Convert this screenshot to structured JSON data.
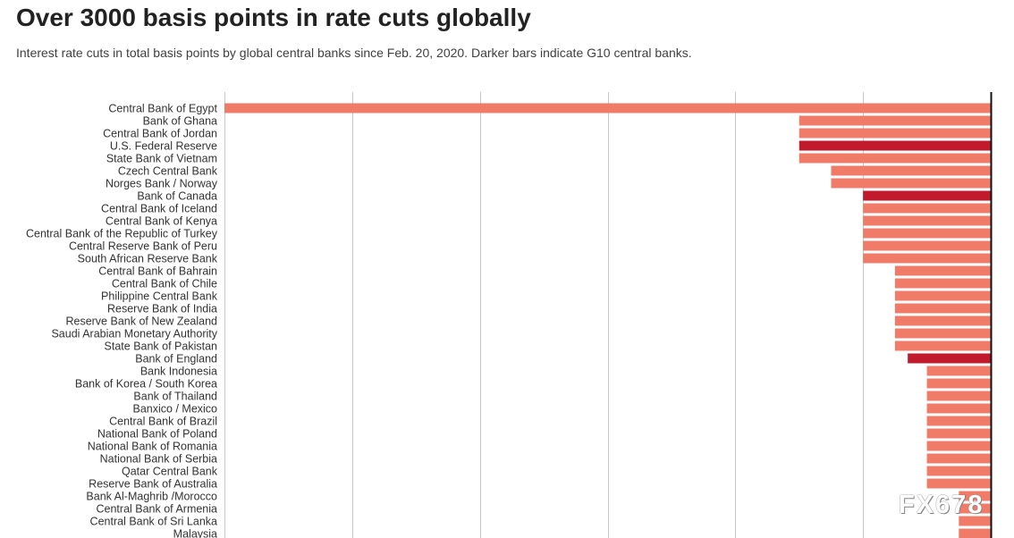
{
  "header": {
    "title": "Over 3000 basis points in rate cuts globally",
    "subtitle": "Interest rate cuts in total basis points by global central banks since Feb. 20, 2020. Darker bars indicate G10 central banks."
  },
  "watermark": "FX678",
  "colors": {
    "bar": "#f07b68",
    "bar_g10": "#c01a2c",
    "grid": "#c8c8c8",
    "axis": "#111111"
  },
  "chart_data": {
    "type": "bar",
    "orientation": "horizontal",
    "grid": true,
    "xlim": [
      0,
      1200
    ],
    "categories": [
      "Central Bank of Egypt",
      "Bank of Ghana",
      "Central Bank of Jordan",
      "U.S. Federal Reserve",
      "State Bank of Vietnam",
      "Czech Central Bank",
      "Norges Bank / Norway",
      "Bank of Canada",
      "Central Bank of Iceland",
      "Central Bank of Kenya",
      "Central Bank of the Republic of Turkey",
      "Central Reserve Bank of Peru",
      "South African Reserve Bank",
      "Central Bank of Bahrain",
      "Central Bank of Chile",
      "Philippine Central Bank",
      "Reserve Bank of India",
      "Reserve Bank of New Zealand",
      "Saudi Arabian Monetary Authority",
      "State Bank of Pakistan",
      "Bank of England",
      "Bank Indonesia",
      "Bank of Korea / South Korea",
      "Bank of Thailand",
      "Banxico / Mexico",
      "Central Bank of Brazil",
      "National Bank of Poland",
      "National Bank of Romania",
      "National Bank of Serbia",
      "Qatar Central Bank",
      "Reserve Bank of Australia",
      "Bank Al-Maghrib /Morocco",
      "Central Bank of Armenia",
      "Central Bank of Sri Lanka",
      "Malaysia"
    ],
    "values": [
      1200,
      300,
      300,
      300,
      300,
      250,
      250,
      200,
      200,
      200,
      200,
      200,
      200,
      150,
      150,
      150,
      150,
      150,
      150,
      150,
      130,
      100,
      100,
      100,
      100,
      100,
      100,
      100,
      100,
      100,
      100,
      50,
      50,
      50,
      50
    ],
    "g10": [
      false,
      false,
      false,
      true,
      false,
      false,
      false,
      true,
      false,
      false,
      false,
      false,
      false,
      false,
      false,
      false,
      false,
      false,
      false,
      false,
      true,
      false,
      false,
      false,
      false,
      false,
      false,
      false,
      false,
      false,
      false,
      false,
      false,
      false,
      false
    ]
  }
}
